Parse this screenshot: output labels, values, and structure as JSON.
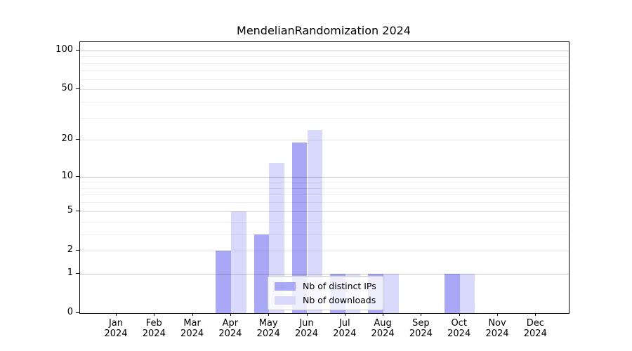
{
  "title": "MendelianRandomization 2024",
  "chart_data": {
    "type": "bar",
    "title": "MendelianRandomization 2024",
    "x_months": [
      "Jan",
      "Feb",
      "Mar",
      "Apr",
      "May",
      "Jun",
      "Jul",
      "Aug",
      "Sep",
      "Oct",
      "Nov",
      "Dec"
    ],
    "x_year": "2024",
    "categories": [
      "Jan 2024",
      "Feb 2024",
      "Mar 2024",
      "Apr 2024",
      "May 2024",
      "Jun 2024",
      "Jul 2024",
      "Aug 2024",
      "Sep 2024",
      "Oct 2024",
      "Nov 2024",
      "Dec 2024"
    ],
    "series": [
      {
        "name": "Nb of distinct IPs",
        "color": "#a8a8f6",
        "values": [
          0,
          0,
          0,
          2,
          3,
          19,
          1,
          1,
          0,
          1,
          0,
          0
        ]
      },
      {
        "name": "Nb of downloads",
        "color": "#d9d9fb",
        "values": [
          0,
          0,
          0,
          5,
          13,
          24,
          1,
          1,
          0,
          1,
          0,
          0
        ]
      }
    ],
    "xlabel": "",
    "ylabel": "",
    "y_scale": "log1p",
    "y_ticks": [
      0,
      1,
      2,
      5,
      10,
      20,
      50,
      100
    ],
    "y_decade_gridlines": [
      1,
      10,
      100
    ],
    "y_major_gridlines": [
      2,
      5,
      20,
      50
    ],
    "y_minor_gridlines": [
      3,
      4,
      6,
      7,
      8,
      9,
      30,
      40,
      60,
      70,
      80,
      90
    ],
    "ylim": [
      0,
      116
    ],
    "grid": true,
    "legend_position": "lower-center",
    "background_color": "#ffffff",
    "axis_color": "#000000"
  },
  "legend": {
    "items": [
      {
        "label": "Nb of distinct IPs",
        "color": "#a8a8f6"
      },
      {
        "label": "Nb of downloads",
        "color": "#d9d9fb"
      }
    ]
  }
}
